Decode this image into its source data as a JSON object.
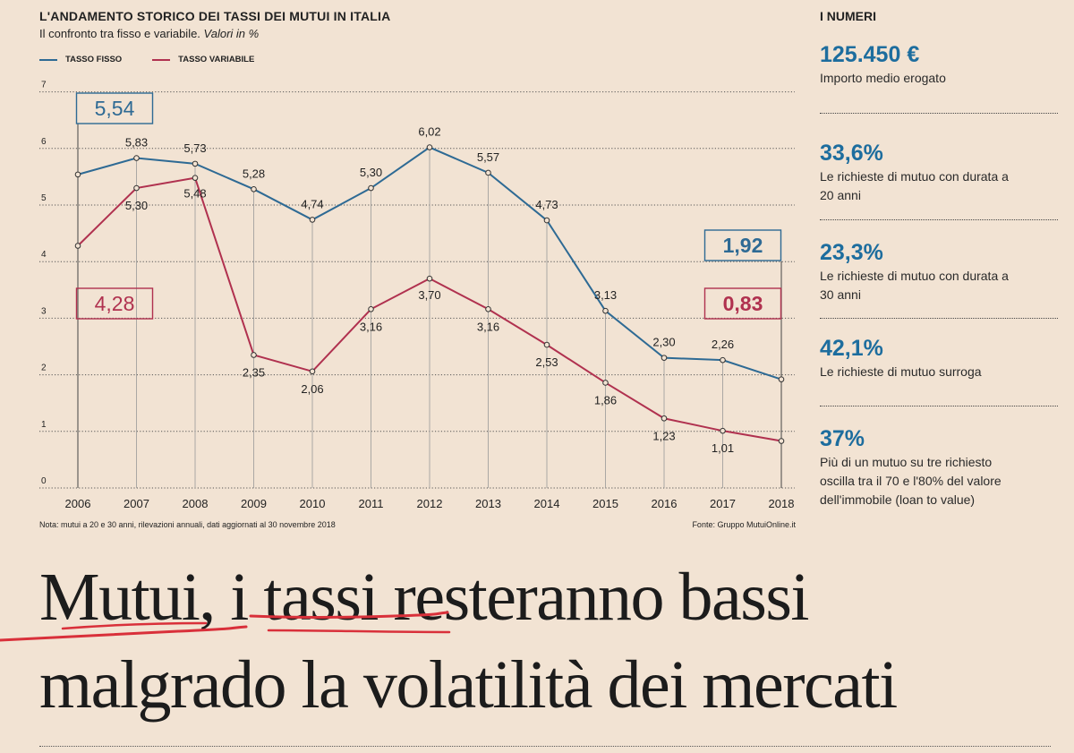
{
  "header": {
    "title": "L'ANDAMENTO STORICO DEI TASSI DEI MUTUI IN ITALIA",
    "subtitle": "Il confronto tra fisso e variabile.",
    "subtitle_italic": "Valori in %"
  },
  "legend": {
    "fixed": "TASSO FISSO",
    "variable": "TASSO VARIABILE"
  },
  "colors": {
    "fixed": "#2e6a94",
    "variable": "#b0314f",
    "background": "#f2e3d3",
    "accent": "#1d6d9e"
  },
  "chart_data": {
    "type": "line",
    "x": [
      2006,
      2007,
      2008,
      2009,
      2010,
      2011,
      2012,
      2013,
      2014,
      2015,
      2016,
      2017,
      2018
    ],
    "series": [
      {
        "name": "TASSO FISSO",
        "values": [
          5.54,
          5.83,
          5.73,
          5.28,
          4.74,
          5.3,
          6.02,
          5.57,
          4.73,
          3.13,
          2.3,
          2.26,
          1.92
        ]
      },
      {
        "name": "TASSO VARIABILE",
        "values": [
          4.28,
          5.3,
          5.48,
          2.35,
          2.06,
          3.16,
          3.7,
          3.16,
          2.53,
          1.86,
          1.23,
          1.01,
          0.83
        ]
      }
    ],
    "fixed_labels": [
      "5,54",
      "5,83",
      "5,73",
      "5,28",
      "4,74",
      "5,30",
      "6,02",
      "5,57",
      "4,73",
      "3,13",
      "2,30",
      "2,26",
      "1,92"
    ],
    "variable_labels": [
      "4,28",
      "5,30",
      "5,48",
      "2,35",
      "2,06",
      "3,16",
      "3,70",
      "3,16",
      "2,53",
      "1,86",
      "1,23",
      "1,01",
      "0,83"
    ],
    "y_ticks": [
      0,
      1,
      2,
      3,
      4,
      5,
      6,
      7
    ],
    "ylim": [
      0,
      7
    ],
    "grid": true,
    "legend_position": "top-left"
  },
  "footer": {
    "note": "Nota: mutui a 20 e 30 anni, rilevazioni annuali, dati aggiornati al 30 novembre 2018",
    "source": "Fonte: Gruppo MutuiOnline.it"
  },
  "sidebar": {
    "title": "I NUMERI",
    "stats": [
      {
        "value": "125.450 €",
        "desc": "Importo medio erogato"
      },
      {
        "value": "33,6%",
        "desc": "Le richieste di mutuo con durata a 20 anni"
      },
      {
        "value": "23,3%",
        "desc": "Le richieste di mutuo con durata a 30 anni"
      },
      {
        "value": "42,1%",
        "desc": "Le richieste di mutuo surroga"
      },
      {
        "value": "37%",
        "desc": "Più di un mutuo su tre richiesto oscilla tra il 70 e l'80% del valore dell'immobile (loan to value)"
      }
    ]
  },
  "headline": {
    "line1": "Mutui, i tassi resteranno bassi",
    "line2": "malgrado la volatilità dei mercati"
  }
}
